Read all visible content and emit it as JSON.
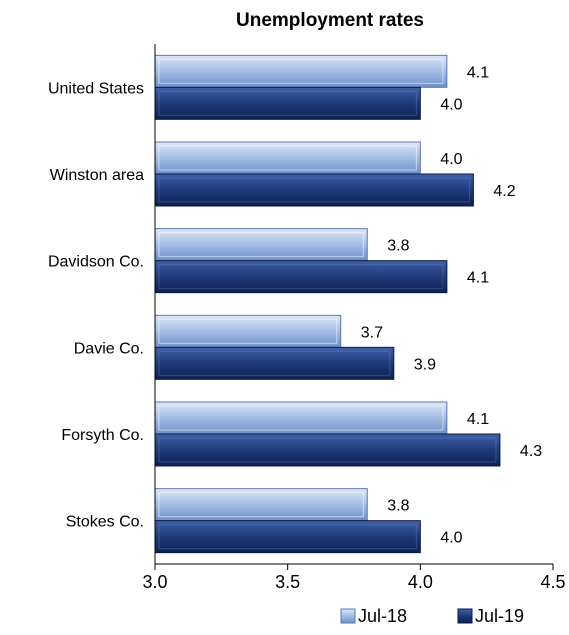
{
  "chart_data": {
    "type": "bar",
    "orientation": "horizontal",
    "title": "Unemployment rates",
    "categories": [
      "United States",
      "Winston area",
      "Davidson Co.",
      "Davie Co.",
      "Forsyth Co.",
      "Stokes Co."
    ],
    "series": [
      {
        "name": "Jul-18",
        "values": [
          4.1,
          4.0,
          3.8,
          3.7,
          4.1,
          3.8
        ],
        "color": "#9db6e0"
      },
      {
        "name": "Jul-19",
        "values": [
          4.0,
          4.2,
          4.1,
          3.9,
          4.3,
          4.0
        ],
        "color": "#1f3a7a"
      }
    ],
    "xlim": [
      3.0,
      4.5
    ],
    "xticks": [
      "3.0",
      "3.5",
      "4.0",
      "4.5"
    ],
    "data_labels": [
      [
        "4.1",
        "4.0",
        "3.8",
        "3.7",
        "4.1",
        "3.8"
      ],
      [
        "4.0",
        "4.2",
        "4.1",
        "3.9",
        "4.3",
        "4.0"
      ]
    ],
    "legend_position": "bottom-right",
    "grid": false
  }
}
